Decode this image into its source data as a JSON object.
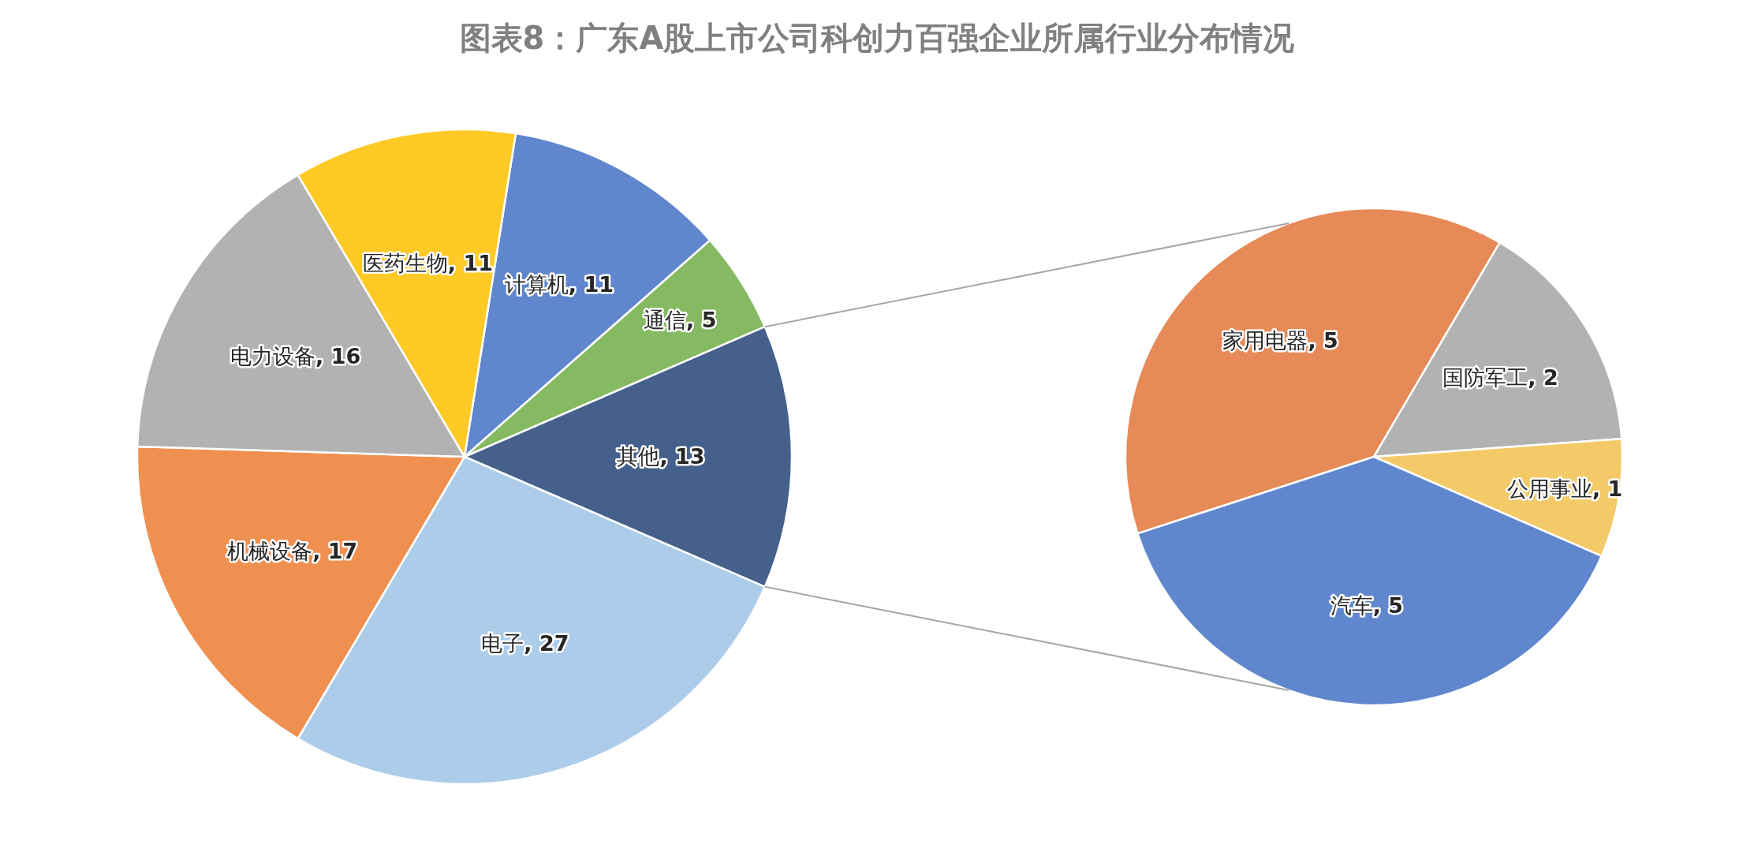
{
  "chart_data": [
    {
      "type": "pie",
      "title": "图表8：广东A股上市公司科创力百强企业所属行业分布情况",
      "categories": [
        "计算机",
        "通信",
        "其他",
        "电子",
        "机械设备",
        "电力设备",
        "医药生物"
      ],
      "values": [
        11,
        5,
        13,
        27,
        17,
        16,
        11
      ],
      "value_labels": [
        ", 11",
        ", 5",
        ", 13",
        ", 27",
        ", 17",
        ", 16",
        ", 11"
      ],
      "colors": [
        "#4472c4",
        "#70ad47",
        "#264478",
        "#9dc3e6",
        "#ed7d31",
        "#a5a5a5",
        "#ffc000"
      ]
    },
    {
      "type": "pie",
      "categories": [
        "家用电器",
        "国防军工",
        "公用事业",
        "汽车"
      ],
      "values": [
        5,
        2,
        1,
        5
      ],
      "value_labels": [
        ", 5",
        ", 2",
        ", 1",
        ", 5"
      ],
      "colors": [
        "#e2763a",
        "#a5a5a5",
        "#f2c14e",
        "#4472c4"
      ]
    }
  ]
}
